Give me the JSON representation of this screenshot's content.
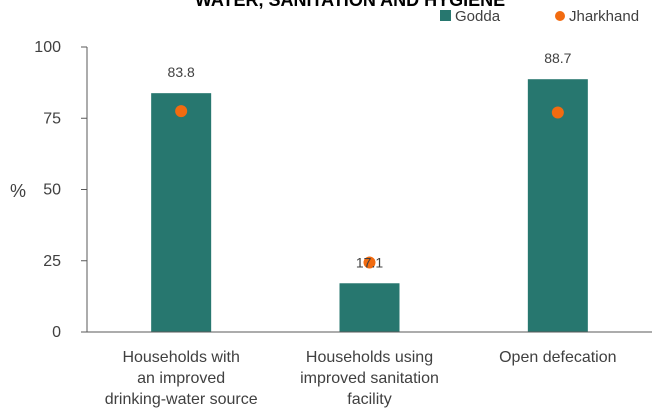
{
  "chart_data": {
    "type": "bar",
    "title": "WATER, SANITATION AND HYGIENE",
    "ylabel": "%",
    "xlabel": "",
    "ylim": [
      0,
      100
    ],
    "yticks": [
      0,
      25,
      50,
      75,
      100
    ],
    "categories": [
      [
        "Households with",
        "an improved",
        "drinking-water source"
      ],
      [
        "Households using",
        "improved sanitation",
        "facility"
      ],
      [
        "Open defecation"
      ]
    ],
    "series": [
      {
        "name": "Godda",
        "kind": "bar",
        "color": "#27776f",
        "values": [
          83.8,
          17.1,
          88.7
        ],
        "labels": [
          "83.8",
          "17.1",
          "88.7"
        ]
      },
      {
        "name": "Jharkhand",
        "kind": "marker",
        "color": "#f26b10",
        "values": [
          77.5,
          24.4,
          77.0
        ]
      }
    ],
    "grid": false,
    "legend_position": "top-right"
  }
}
